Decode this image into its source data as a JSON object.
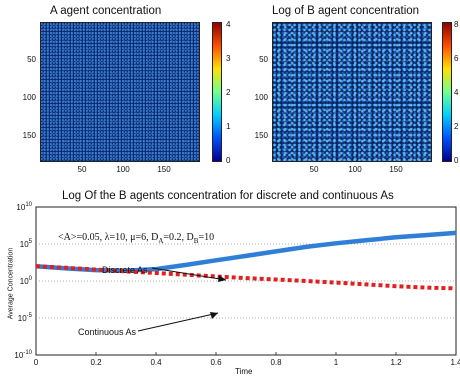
{
  "panel_a": {
    "title": "A agent concentration",
    "yticks": [
      "50",
      "100",
      "150"
    ],
    "xticks": [
      "50",
      "100",
      "150"
    ],
    "cbar_ticks": [
      "0",
      "1",
      "2",
      "3",
      "4"
    ]
  },
  "panel_b": {
    "title": "Log of B agent concentration",
    "yticks": [
      "50",
      "100",
      "150"
    ],
    "xticks": [
      "50",
      "100",
      "150"
    ],
    "cbar_ticks": [
      "0",
      "2",
      "4",
      "6",
      "8"
    ]
  },
  "colormap": [
    "#00008f",
    "#0050ff",
    "#00d0ff",
    "#70ff90",
    "#ffe000",
    "#ff5000",
    "#900000"
  ],
  "chart_data": {
    "type": "line",
    "title": "Log Of the B agents concentration for discrete and continuous As",
    "xlabel": "Time",
    "ylabel": "Average Concentration",
    "xlim": [
      0,
      1.4
    ],
    "ylim": [
      1e-10,
      10000000000.0
    ],
    "yscale": "log",
    "xticks": [
      "0",
      "0.2",
      "0.4",
      "0.6",
      "0.8",
      "1",
      "1.2",
      "1.4"
    ],
    "yticks": [
      {
        "base": "10",
        "exp": "10",
        "value": 10000000000.0
      },
      {
        "base": "10",
        "exp": "5",
        "value": 100000.0
      },
      {
        "base": "10",
        "exp": "0",
        "value": 1
      },
      {
        "base": "10",
        "exp": "-5",
        "value": 1e-05
      },
      {
        "base": "10",
        "exp": "-10",
        "value": 1e-10
      }
    ],
    "params_text": "<A>=0.05, λ=10, μ=6, D",
    "params_sub": [
      "A",
      "B"
    ],
    "params_mid": "=0.2, D",
    "params_end": "=10",
    "series": [
      {
        "name": "Discrete As",
        "color": "#2f7fd6",
        "style": "solid",
        "x": [
          0,
          0.1,
          0.2,
          0.3,
          0.4,
          0.5,
          0.6,
          0.7,
          0.8,
          0.9,
          1.0,
          1.1,
          1.2,
          1.3,
          1.4
        ],
        "y": [
          100,
          50,
          30,
          25,
          40,
          150,
          630,
          2500,
          10000,
          40000,
          126000,
          320000,
          800000,
          1600000,
          3200000
        ]
      },
      {
        "name": "Continuous As",
        "color": "#e02020",
        "style": "dashed",
        "x": [
          0,
          0.1,
          0.2,
          0.3,
          0.4,
          0.5,
          0.6,
          0.7,
          0.8,
          0.9,
          1.0,
          1.1,
          1.2,
          1.3,
          1.4
        ],
        "y": [
          100,
          60,
          35,
          20,
          12,
          7,
          4,
          2.5,
          1.6,
          1,
          0.6,
          0.35,
          0.2,
          0.13,
          0.1
        ]
      }
    ]
  }
}
